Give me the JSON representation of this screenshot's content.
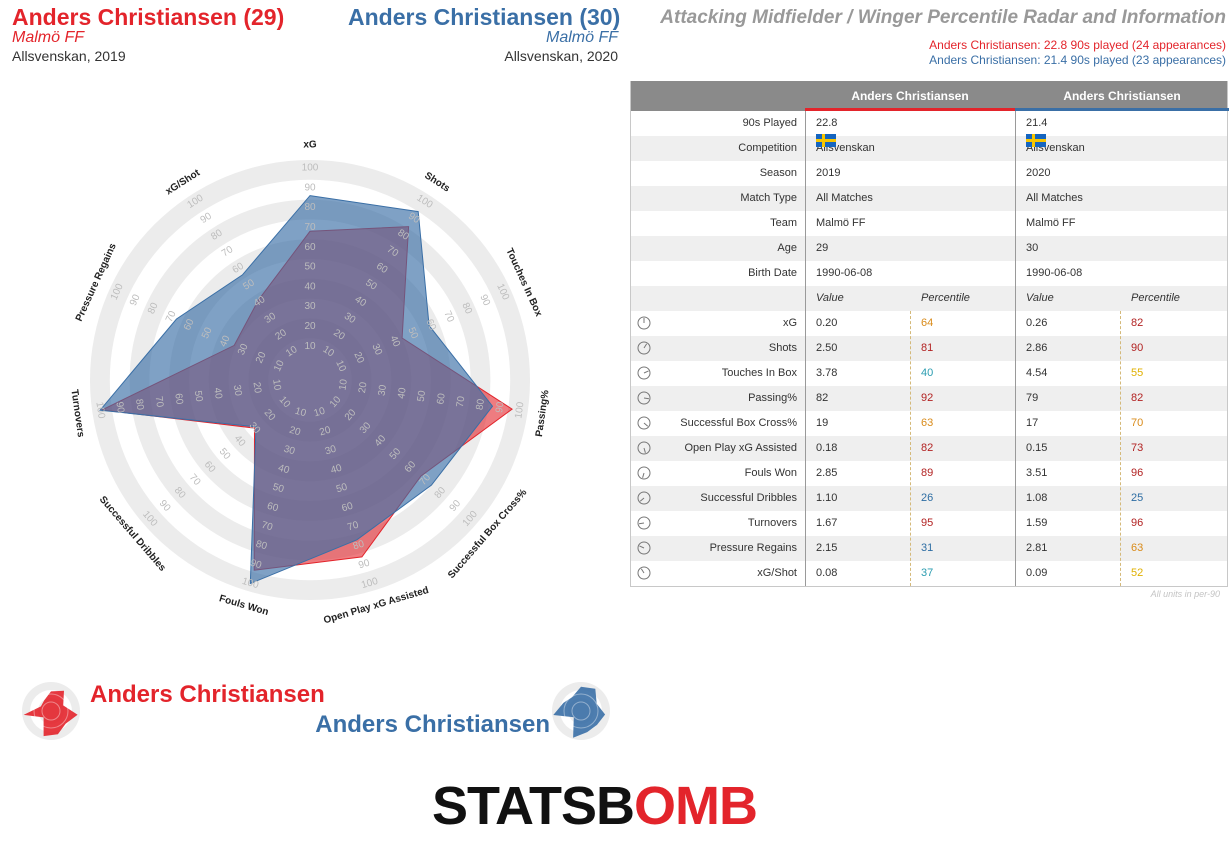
{
  "header": {
    "player1": {
      "name": "Anders Christiansen (29)",
      "team": "Malmö FF",
      "competition": "Allsvenskan, 2019"
    },
    "player2": {
      "name": "Anders Christiansen (30)",
      "team": "Malmö FF",
      "competition": "Allsvenskan, 2020"
    },
    "title": "Attacking Midfielder / Winger Percentile Radar and Information",
    "appearances1": "Anders Christiansen: 22.8 90s played (24 appearances)",
    "appearances2": "Anders Christiansen: 21.4 90s played (23 appearances)"
  },
  "colors": {
    "player1": "#e3242b",
    "player2": "#3a6fa6",
    "pct_red": "#b22222",
    "pct_orange": "#d98b1a",
    "pct_yellow": "#e0b000",
    "pct_teal": "#2a9cb0",
    "pct_blue": "#2d6da3"
  },
  "table": {
    "col1_header": "Anders Christiansen",
    "col2_header": "Anders Christiansen",
    "info_rows": [
      {
        "label": "90s Played",
        "v1": "22.8",
        "v2": "21.4"
      },
      {
        "label": "Competition",
        "v1": "Allsvenskan",
        "v2": "Allsvenskan",
        "flag": "sweden-flag"
      },
      {
        "label": "Season",
        "v1": "2019",
        "v2": "2020"
      },
      {
        "label": "Match Type",
        "v1": "All Matches",
        "v2": "All Matches"
      },
      {
        "label": "Team",
        "v1": "Malmö FF",
        "v2": "Malmö FF"
      },
      {
        "label": "Age",
        "v1": "29",
        "v2": "30"
      },
      {
        "label": "Birth Date",
        "v1": "1990-06-08",
        "v2": "1990-06-08"
      }
    ],
    "sub_headers": {
      "value": "Value",
      "percentile": "Percentile"
    },
    "metric_rows": [
      {
        "label": "xG",
        "v1": "0.20",
        "p1": "64",
        "c1": "#d98b1a",
        "v2": "0.26",
        "p2": "82",
        "c2": "#b22222"
      },
      {
        "label": "Shots",
        "v1": "2.50",
        "p1": "81",
        "c1": "#b22222",
        "v2": "2.86",
        "p2": "90",
        "c2": "#b22222"
      },
      {
        "label": "Touches In Box",
        "v1": "3.78",
        "p1": "40",
        "c1": "#2a9cb0",
        "v2": "4.54",
        "p2": "55",
        "c2": "#e0b000"
      },
      {
        "label": "Passing%",
        "v1": "82",
        "p1": "92",
        "c1": "#b22222",
        "v2": "79",
        "p2": "82",
        "c2": "#b22222"
      },
      {
        "label": "Successful Box Cross%",
        "v1": "19",
        "p1": "63",
        "c1": "#d98b1a",
        "v2": "17",
        "p2": "70",
        "c2": "#d98b1a"
      },
      {
        "label": "Open Play xG Assisted",
        "v1": "0.18",
        "p1": "82",
        "c1": "#b22222",
        "v2": "0.15",
        "p2": "73",
        "c2": "#b22222"
      },
      {
        "label": "Fouls Won",
        "v1": "2.85",
        "p1": "89",
        "c1": "#b22222",
        "v2": "3.51",
        "p2": "96",
        "c2": "#b22222"
      },
      {
        "label": "Successful Dribbles",
        "v1": "1.10",
        "p1": "26",
        "c1": "#2d6da3",
        "v2": "1.08",
        "p2": "25",
        "c2": "#2d6da3"
      },
      {
        "label": "Turnovers",
        "v1": "1.67",
        "p1": "95",
        "c1": "#b22222",
        "v2": "1.59",
        "p2": "96",
        "c2": "#b22222"
      },
      {
        "label": "Pressure Regains",
        "v1": "2.15",
        "p1": "31",
        "c1": "#2d6da3",
        "v2": "2.81",
        "p2": "63",
        "c2": "#d98b1a"
      },
      {
        "label": "xG/Shot",
        "v1": "0.08",
        "p1": "37",
        "c1": "#2a9cb0",
        "v2": "0.09",
        "p2": "52",
        "c2": "#e0b000"
      }
    ],
    "footnote": "All units in per-90"
  },
  "legend": {
    "player1": "Anders Christiansen",
    "player2": "Anders Christiansen"
  },
  "logo": {
    "part1": "STATSB",
    "part2": "O",
    "part3": "MB"
  },
  "chart_data": {
    "type": "radar",
    "axes": [
      "xG",
      "Shots",
      "Touches In Box",
      "Passing%",
      "Successful Box Cross%",
      "Open Play xG Assisted",
      "Fouls Won",
      "Successful Dribbles",
      "Turnovers",
      "Pressure Regains",
      "xG/Shot"
    ],
    "range": [
      0,
      100
    ],
    "ring_ticks": [
      10,
      20,
      30,
      40,
      50,
      60,
      70,
      80,
      90,
      100
    ],
    "series": [
      {
        "name": "Anders Christiansen",
        "values": [
          64,
          81,
          40,
          92,
          63,
          82,
          89,
          26,
          95,
          31,
          37
        ]
      },
      {
        "name": "Anders Christiansen",
        "values": [
          82,
          90,
          55,
          82,
          70,
          73,
          96,
          25,
          96,
          63,
          52
        ]
      }
    ]
  }
}
